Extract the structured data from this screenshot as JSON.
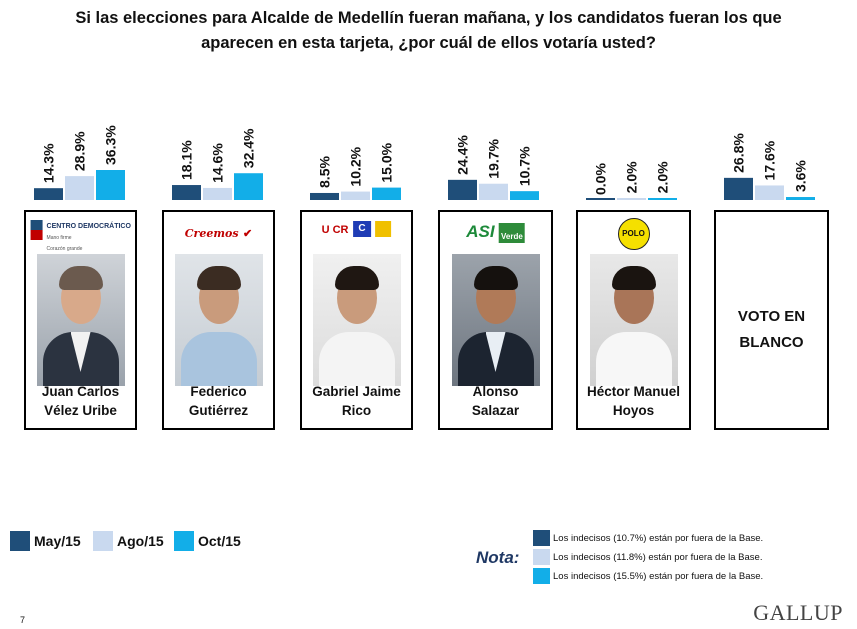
{
  "title": {
    "line1": "Si las elecciones para Alcalde de Medellín fueran mañana, y los candidatos fueran los que",
    "line2": "aparecen en esta tarjeta, ¿por cuál de ellos votaría usted?"
  },
  "colors": {
    "may": "#1f4e79",
    "ago": "#c9d9ef",
    "oct": "#12aee8"
  },
  "chart_data": {
    "type": "bar",
    "categories": [
      "Juan Carlos Vélez Uribe",
      "Federico Gutiérrez",
      "Gabriel Jaime Rico",
      "Alonso Salazar",
      "Héctor Manuel Hoyos",
      "VOTO EN BLANCO"
    ],
    "series": [
      {
        "name": "May/15",
        "values": [
          14.3,
          18.1,
          8.5,
          24.4,
          0.0,
          26.8
        ],
        "labels": [
          "14.3%",
          "18.1%",
          "8.5%",
          "24.4%",
          "0.0%",
          "26.8%"
        ]
      },
      {
        "name": "Ago/15",
        "values": [
          28.9,
          14.6,
          10.2,
          19.7,
          2.0,
          17.6
        ],
        "labels": [
          "28.9%",
          "14.6%",
          "10.2%",
          "19.7%",
          "2.0%",
          "17.6%"
        ]
      },
      {
        "name": "Oct/15",
        "values": [
          36.3,
          32.4,
          15.0,
          10.7,
          2.0,
          3.6
        ],
        "labels": [
          "36.3%",
          "32.4%",
          "15.0%",
          "10.7%",
          "2.0%",
          "3.6%"
        ]
      }
    ],
    "unit": "%",
    "ylim": [
      0,
      40
    ],
    "legend_position": "bottom-left"
  },
  "cards": [
    {
      "name_line1": "Juan Carlos",
      "name_line2": "Vélez Uribe",
      "logo": "CENTRO DEMOCRÁTICO",
      "logo_sub1": "Mano firme",
      "logo_sub2": "Corazón grande"
    },
    {
      "name_line1": "Federico",
      "name_line2": "Gutiérrez",
      "logo": "Creemos"
    },
    {
      "name_line1": "Gabriel Jaime",
      "name_line2": "Rico",
      "logo": "U  CR"
    },
    {
      "name_line1": "Alonso",
      "name_line2": "Salazar",
      "logo": "ASI",
      "logo2": "Verde"
    },
    {
      "name_line1": "Héctor Manuel",
      "name_line2": "Hoyos",
      "logo": "POLO"
    },
    {
      "blank_line1": "VOTO EN",
      "blank_line2": "BLANCO"
    }
  ],
  "legend": {
    "may": "May/15",
    "ago": "Ago/15",
    "oct": "Oct/15"
  },
  "nota": {
    "label": "Nota:",
    "items": [
      "Los indecisos (10.7%) están por fuera de la Base.",
      "Los indecisos (11.8%) están por fuera de la Base.",
      "Los indecisos (15.5%) están por fuera de la Base."
    ]
  },
  "page_number": "7",
  "brand": "GALLUP"
}
